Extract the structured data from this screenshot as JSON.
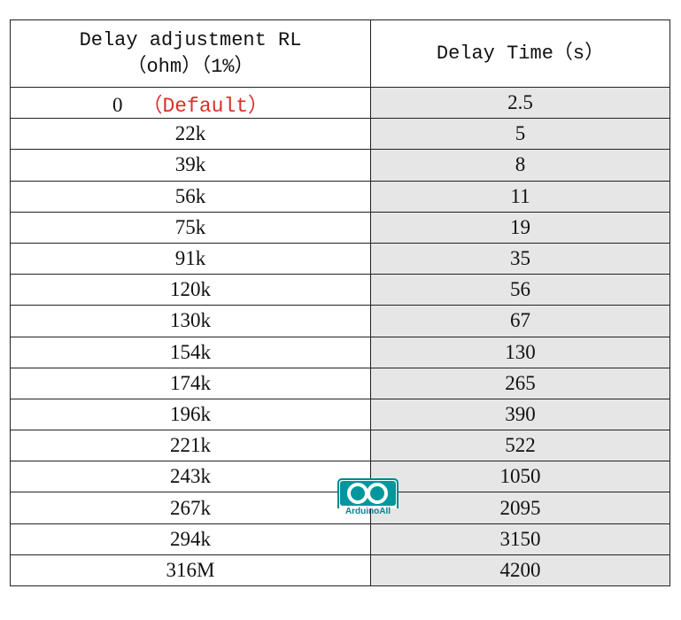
{
  "table": {
    "header": {
      "resistance": [
        "Delay adjustment  RL",
        "（ohm）（1%）"
      ],
      "time": "Delay Time（s）"
    },
    "rows": [
      {
        "resistance": "0",
        "note": "（Default）",
        "time": "2.5"
      },
      {
        "resistance": "22k",
        "time": "5"
      },
      {
        "resistance": "39k",
        "time": "8"
      },
      {
        "resistance": "56k",
        "time": "11"
      },
      {
        "resistance": "75k",
        "time": "19"
      },
      {
        "resistance": "91k",
        "time": "35"
      },
      {
        "resistance": "120k",
        "time": "56"
      },
      {
        "resistance": "130k",
        "time": "67"
      },
      {
        "resistance": "154k",
        "time": "130"
      },
      {
        "resistance": "174k",
        "time": "265"
      },
      {
        "resistance": "196k",
        "time": "390"
      },
      {
        "resistance": "221k",
        "time": "522"
      },
      {
        "resistance": "243k",
        "time": "1050"
      },
      {
        "resistance": "267k",
        "time": "2095"
      },
      {
        "resistance": "294k",
        "time": "3150"
      },
      {
        "resistance": "316M",
        "time": "4200"
      }
    ]
  },
  "logo": {
    "text": "ArduinoAll"
  }
}
